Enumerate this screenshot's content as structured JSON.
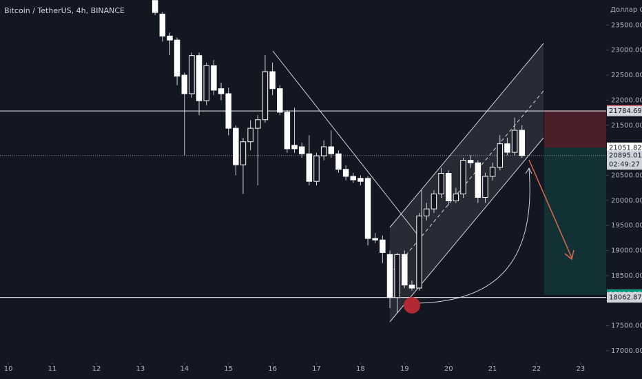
{
  "chart_data": {
    "type": "candlestick",
    "title": "Bitcoin / TetherUS, 4h, BINANCE",
    "y_axis_label": "Доллар СШ",
    "x": [
      13.333,
      13.5,
      13.667,
      13.833,
      14,
      14.167,
      14.333,
      14.5,
      14.667,
      14.833,
      15,
      15.167,
      15.333,
      15.5,
      15.667,
      15.833,
      16,
      16.167,
      16.333,
      16.5,
      16.667,
      16.833,
      17,
      17.167,
      17.333,
      17.5,
      17.667,
      17.833,
      18,
      18.167,
      18.333,
      18.5,
      18.667,
      18.833,
      19,
      19.167,
      19.333,
      19.5,
      19.667,
      19.833,
      20,
      20.167,
      20.333,
      20.5,
      20.667,
      20.833,
      21,
      21.167,
      21.333,
      21.5,
      21.667
    ],
    "open": [
      23990,
      23720,
      23280,
      23200,
      22500,
      22130,
      22890,
      21990,
      22690,
      22230,
      22130,
      21440,
      20710,
      21170,
      21440,
      21610,
      22570,
      22230,
      21760,
      21100,
      21070,
      20930,
      20380,
      20890,
      21070,
      20930,
      20620,
      20480,
      20440,
      20440,
      19240,
      19210,
      18920,
      18060,
      18920,
      18310,
      18250,
      19690,
      19830,
      20130,
      20540,
      19990,
      20130,
      20800,
      20750,
      20060,
      20480,
      20660,
      21130,
      20960,
      21400
    ],
    "high": [
      24050,
      23760,
      23350,
      23250,
      22550,
      22950,
      22950,
      22750,
      22800,
      22350,
      22250,
      21500,
      21250,
      21600,
      21700,
      22900,
      22750,
      22300,
      21800,
      21850,
      21150,
      21300,
      20950,
      21200,
      21400,
      21000,
      20700,
      20550,
      20500,
      20480,
      19350,
      19300,
      19000,
      18950,
      19000,
      18400,
      19750,
      19950,
      20200,
      20650,
      20600,
      20250,
      20850,
      20900,
      20800,
      20550,
      20750,
      21300,
      21250,
      21650,
      21500
    ],
    "low": [
      23700,
      23170,
      22900,
      22300,
      20900,
      22050,
      21700,
      21900,
      22100,
      22000,
      21300,
      20500,
      20130,
      21000,
      20300,
      21550,
      22100,
      21700,
      20950,
      20950,
      20850,
      20300,
      20300,
      20800,
      20850,
      20550,
      20400,
      20350,
      20300,
      19100,
      19150,
      18750,
      17850,
      17750,
      18250,
      18200,
      18200,
      19600,
      19750,
      20050,
      19900,
      19950,
      20050,
      20650,
      19950,
      19950,
      20400,
      20600,
      20900,
      20900,
      20850
    ],
    "close": [
      23750,
      23280,
      23200,
      22480,
      22130,
      22890,
      21990,
      22690,
      22200,
      22130,
      21440,
      20710,
      21170,
      21440,
      21610,
      22570,
      22230,
      21760,
      21030,
      21030,
      20930,
      20380,
      20890,
      21070,
      20930,
      20620,
      20480,
      20410,
      20380,
      19240,
      19210,
      18960,
      18060,
      18920,
      18310,
      18250,
      19690,
      19830,
      20130,
      20540,
      19990,
      20130,
      20800,
      20750,
      20060,
      20480,
      20660,
      21130,
      20960,
      21400,
      20895.01
    ],
    "xlim": [
      9.81,
      23.58
    ],
    "xticks": [
      10,
      11,
      12,
      13,
      14,
      15,
      16,
      17,
      18,
      19,
      20,
      21,
      22,
      23
    ],
    "ylim": [
      16820,
      24000
    ],
    "yticks": [
      {
        "value": 17000,
        "label": "17000.00"
      },
      {
        "value": 17500,
        "label": "17500.00"
      },
      {
        "value": 18000,
        "label": "18000.00"
      },
      {
        "value": 18500,
        "label": "18500.00"
      },
      {
        "value": 19000,
        "label": "19000.00"
      },
      {
        "value": 19500,
        "label": "19500.00"
      },
      {
        "value": 20000,
        "label": "20000.00"
      },
      {
        "value": 20500,
        "label": "20500.00"
      },
      {
        "value": 21000,
        "label": "21000.00"
      },
      {
        "value": 21500,
        "label": "21500.00"
      },
      {
        "value": 22000,
        "label": "22000.00"
      },
      {
        "value": 22500,
        "label": "22500.00"
      },
      {
        "value": 23000,
        "label": "23000.00"
      },
      {
        "value": 23500,
        "label": "23500.00"
      }
    ],
    "levels": [
      21784.69,
      18062.87
    ],
    "position": {
      "stop": 21799.06,
      "entry": 21051.82,
      "target": 18120.35,
      "loss_color": "#f23645",
      "profit_color": "#089981"
    },
    "last_price": 20895.01,
    "countdown": "02:49:27",
    "up_color": "#131722",
    "down_color": "#ffffff"
  }
}
